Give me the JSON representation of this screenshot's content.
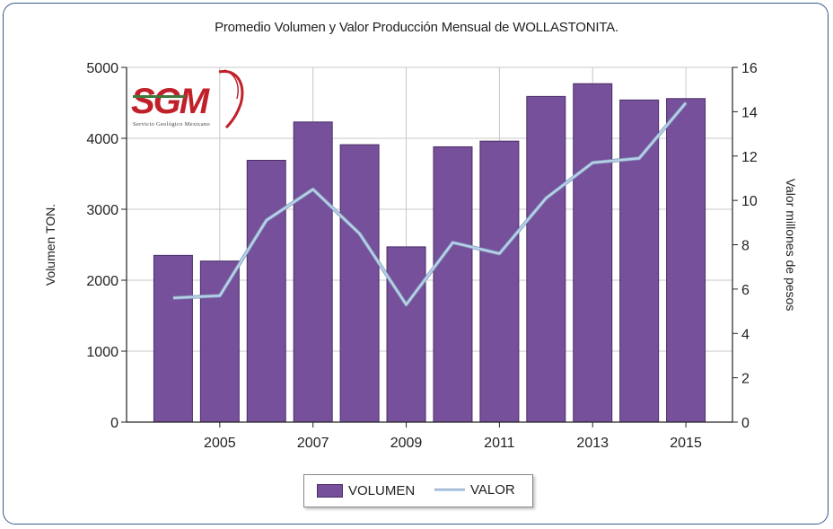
{
  "chart_data": {
    "type": "bar",
    "title": "Promedio Volumen y Valor Producción Mensual de WOLLASTONITA.",
    "ylabel": "Volumen TON.",
    "y2label": "Valor millones de pesos",
    "x": [
      2004,
      2005,
      2006,
      2007,
      2008,
      2009,
      2010,
      2011,
      2012,
      2013,
      2014,
      2015
    ],
    "xticks": [
      "2005",
      "2007",
      "2009",
      "2011",
      "2013",
      "2015"
    ],
    "yticks": [
      "0",
      "1000",
      "2000",
      "3000",
      "4000",
      "5000"
    ],
    "y2ticks": [
      "0",
      "2",
      "4",
      "6",
      "8",
      "10",
      "12",
      "14",
      "16"
    ],
    "ylim": [
      0,
      5000
    ],
    "y2lim": [
      0,
      16
    ],
    "series": [
      {
        "name": "VOLUMEN",
        "type": "bar",
        "axis": "left",
        "values": [
          2350,
          2270,
          3690,
          4230,
          3910,
          2470,
          3880,
          3960,
          4590,
          4770,
          4540,
          4560
        ]
      },
      {
        "name": "VALOR",
        "type": "line",
        "axis": "right",
        "values": [
          5.6,
          5.7,
          9.1,
          10.5,
          8.5,
          5.3,
          8.1,
          7.6,
          10.1,
          11.7,
          11.9,
          14.4
        ]
      }
    ],
    "colors": {
      "bar": "#76509a",
      "bar_edge": "#4a2e66",
      "line": "#b8cfe8",
      "line_edge": "#7d99b8",
      "grid": "#c8c8c8"
    },
    "grid": true,
    "legend": "bottom-center"
  },
  "logo": {
    "text": "SGM",
    "subtitle": "Servicio Geológico Mexicano"
  }
}
